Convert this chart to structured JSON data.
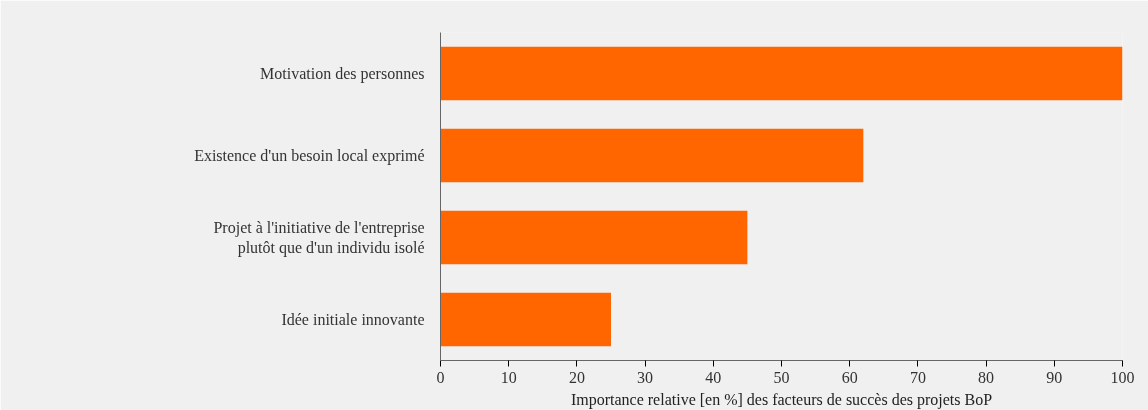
{
  "chart_data": {
    "type": "bar",
    "orientation": "horizontal",
    "categories": [
      "Motivation des personnes",
      "Existence d'un besoin local exprimé",
      "Projet à l'initiative de l'entreprise\nplutôt que d'un individu isolé",
      "Idée initiale innovante"
    ],
    "values": [
      100,
      62,
      45,
      25
    ],
    "color": "#ff6600",
    "xlim": [
      0,
      100
    ],
    "xticks": [
      0,
      10,
      20,
      30,
      40,
      50,
      60,
      70,
      80,
      90,
      100
    ],
    "xlabel": "Importance relative [en %] des facteurs de succès des projets BoP",
    "grid": false
  }
}
